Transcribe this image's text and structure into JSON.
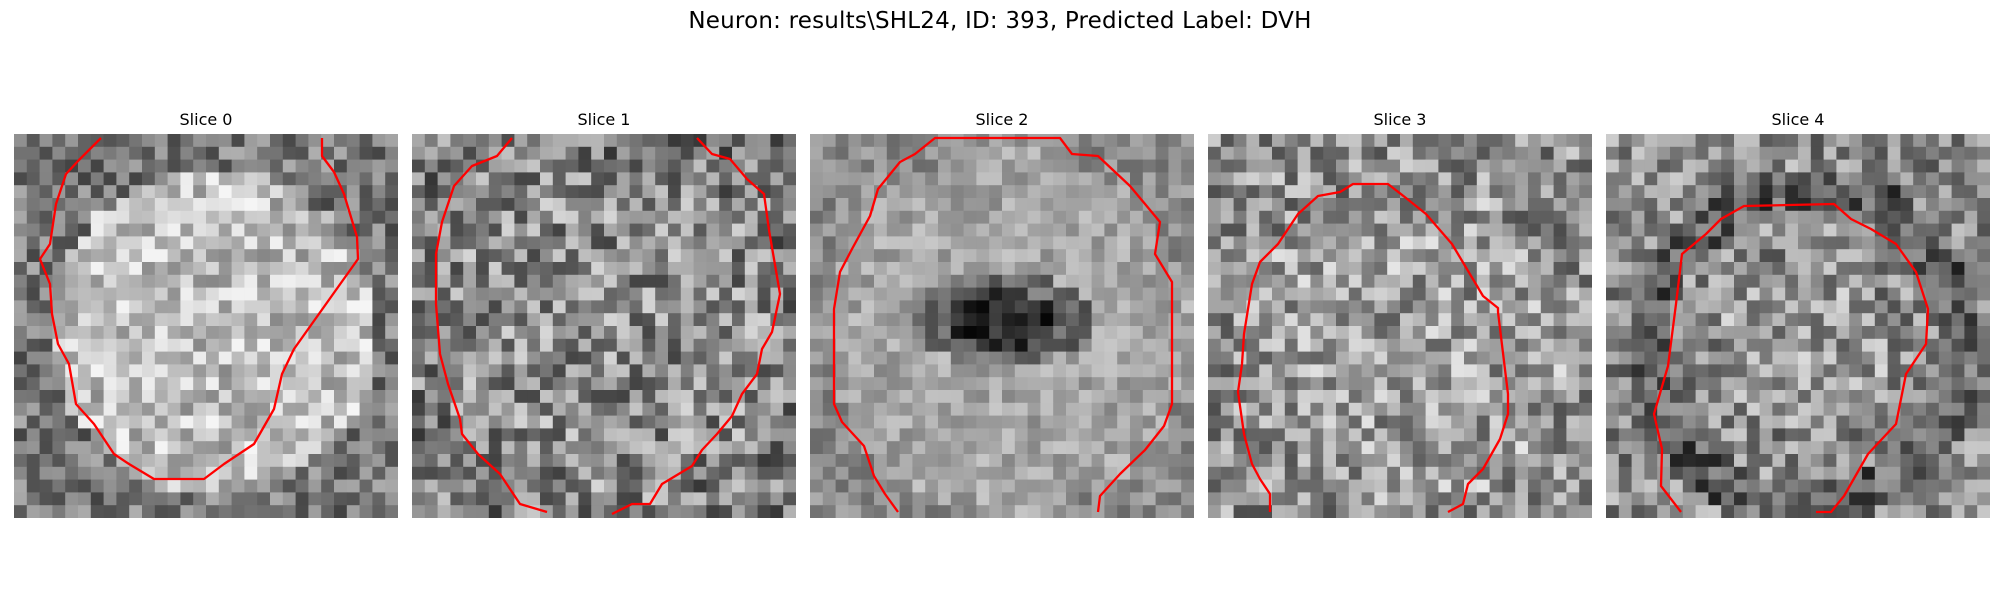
{
  "figure": {
    "title": "Neuron: results\\SHL24, ID: 393, Predicted Label: DVH"
  },
  "slices": [
    {
      "title": "Slice 0"
    },
    {
      "title": "Slice 1"
    },
    {
      "title": "Slice 2"
    },
    {
      "title": "Slice 3"
    },
    {
      "title": "Slice 4"
    }
  ],
  "contour_color": "#ff0000",
  "colormap": "grayscale"
}
